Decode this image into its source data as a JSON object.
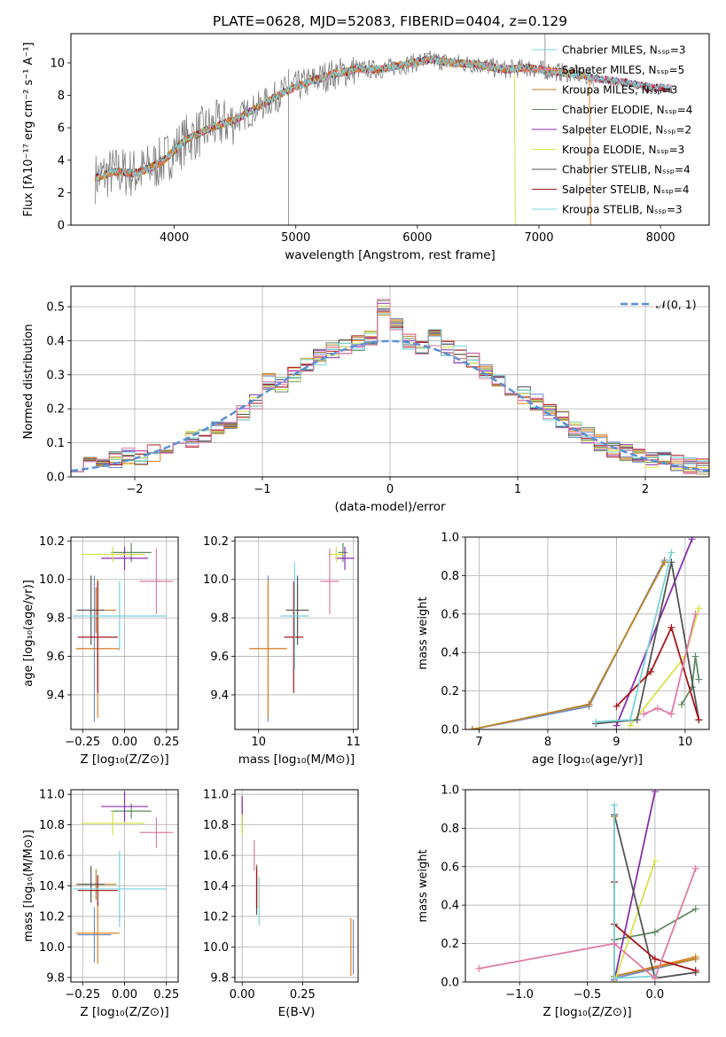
{
  "colors": [
    "#6f8fd0",
    "#e1801f",
    "#b9862e",
    "#5f8c62",
    "#8a2fae",
    "#d6e34c",
    "#555555",
    "#a6161a",
    "#7bd3d9",
    "#e07ba6"
  ],
  "chart_data": [
    {
      "id": "spectrum",
      "type": "line",
      "title": "PLATE=0628, MJD=52083, FIBERID=0404, z=0.129",
      "xlabel": "wavelength [Angstrom, rest frame]",
      "ylabel": "Flux [fλ10⁻¹⁷ erg cm⁻² s⁻¹ A⁻¹]",
      "xlim": [
        3150,
        8400
      ],
      "ylim": [
        0,
        11.8
      ],
      "xticks": [
        4000,
        5000,
        6000,
        7000,
        8000
      ],
      "yticks": [
        0,
        2,
        4,
        6,
        8,
        10
      ],
      "grid": false,
      "legend_position": "top-right",
      "legend": [
        "Chabrier MILES, Nₛₛₚ=3",
        "Salpeter MILES, Nₛₛₚ=5",
        "Kroupa MILES, Nₛₛₚ=3",
        "Chabrier ELODIE, Nₛₛₚ=4",
        "Salpeter ELODIE, Nₛₛₚ=2",
        "Kroupa ELODIE, Nₛₛₚ=3",
        "Chabrier STELIB, Nₛₛₚ=4",
        "Salpeter STELIB, Nₛₛₚ=4",
        "Kroupa STELIB, Nₛₛₚ=3"
      ],
      "continuum": {
        "x": [
          3350,
          3500,
          3700,
          3900,
          4100,
          4300,
          4500,
          4700,
          4900,
          5100,
          5300,
          5500,
          5700,
          5900,
          6100,
          6300,
          6500,
          6700,
          6900,
          7100,
          7300,
          7500,
          7700,
          7900,
          8100
        ],
        "y": [
          2.9,
          3.3,
          3.2,
          3.9,
          5.3,
          6.0,
          6.5,
          7.3,
          8.2,
          8.8,
          9.3,
          9.6,
          9.6,
          9.9,
          10.2,
          10.0,
          9.9,
          9.6,
          9.7,
          9.5,
          9.3,
          9.0,
          8.8,
          8.5,
          8.4
        ]
      }
    },
    {
      "id": "residuals",
      "type": "line",
      "xlabel": "(data-model)/error",
      "ylabel": "Normed distribution",
      "xlim": [
        -2.5,
        2.5
      ],
      "ylim": [
        0,
        0.56
      ],
      "xticks": [
        -2,
        -1,
        0,
        1,
        2
      ],
      "yticks": [
        0.0,
        0.1,
        0.2,
        0.3,
        0.4,
        0.5
      ],
      "grid": true,
      "legend_position": "top-right",
      "legend": [
        "𝒩(0, 1)"
      ],
      "gaussian": {
        "mean": 0,
        "sigma": 1
      },
      "hist_centers": [
        -2.45,
        -2.35,
        -2.25,
        -2.15,
        -2.05,
        -1.95,
        -1.85,
        -1.75,
        -1.65,
        -1.55,
        -1.45,
        -1.35,
        -1.25,
        -1.15,
        -1.05,
        -0.95,
        -0.85,
        -0.75,
        -0.65,
        -0.55,
        -0.45,
        -0.35,
        -0.25,
        -0.15,
        -0.05,
        0.05,
        0.15,
        0.25,
        0.35,
        0.45,
        0.55,
        0.65,
        0.75,
        0.85,
        0.95,
        1.05,
        1.15,
        1.25,
        1.35,
        1.45,
        1.55,
        1.65,
        1.75,
        1.85,
        1.95,
        2.05,
        2.15,
        2.25,
        2.35,
        2.45
      ],
      "hist_values": [
        0.04,
        0.06,
        0.04,
        0.05,
        0.06,
        0.06,
        0.07,
        0.08,
        0.1,
        0.11,
        0.12,
        0.14,
        0.16,
        0.19,
        0.22,
        0.28,
        0.27,
        0.3,
        0.33,
        0.35,
        0.37,
        0.38,
        0.39,
        0.41,
        0.5,
        0.45,
        0.4,
        0.38,
        0.41,
        0.38,
        0.36,
        0.34,
        0.31,
        0.29,
        0.26,
        0.24,
        0.22,
        0.19,
        0.17,
        0.14,
        0.12,
        0.1,
        0.08,
        0.07,
        0.06,
        0.05,
        0.05,
        0.04,
        0.03,
        0.03
      ]
    },
    {
      "id": "z-age",
      "type": "scatter",
      "xlabel": "Z [log₁₀(Z/Z⊙)]",
      "ylabel": "age  [log₁₀(age/yr)]",
      "xlim": [
        -0.32,
        0.32
      ],
      "ylim": [
        9.22,
        10.22
      ],
      "xticks": [
        -0.25,
        0.0,
        0.25
      ],
      "xticklabels": [
        "−0.25",
        "0.00",
        "0.25"
      ],
      "yticks": [
        9.4,
        9.6,
        9.8,
        10.0,
        10.2
      ],
      "grid": true,
      "points": [
        {
          "x": -0.18,
          "y": 9.64,
          "xerr": 0.1,
          "yerr": 0.38
        },
        {
          "x": -0.16,
          "y": 9.64,
          "xerr": 0.13,
          "yerr": 0.36
        },
        {
          "x": -0.17,
          "y": 9.84,
          "xerr": 0.12,
          "yerr": 0.12
        },
        {
          "x": 0.04,
          "y": 10.14,
          "xerr": 0.12,
          "yerr": 0.05
        },
        {
          "x": 0.0,
          "y": 10.11,
          "xerr": 0.14,
          "yerr": 0.06
        },
        {
          "x": -0.07,
          "y": 10.13,
          "xerr": 0.19,
          "yerr": 0.04
        },
        {
          "x": -0.2,
          "y": 9.84,
          "xerr": 0.08,
          "yerr": 0.18
        },
        {
          "x": -0.16,
          "y": 9.7,
          "xerr": 0.12,
          "yerr": 0.29
        },
        {
          "x": -0.03,
          "y": 9.81,
          "xerr": 0.28,
          "yerr": 0.18
        },
        {
          "x": 0.19,
          "y": 9.99,
          "xerr": 0.1,
          "yerr": 0.17
        }
      ]
    },
    {
      "id": "mass-age",
      "type": "scatter",
      "xlabel": "mass [log₁₀(M/M⊙)]",
      "xlim": [
        9.75,
        11.05
      ],
      "ylim": [
        9.22,
        10.22
      ],
      "xticks": [
        10,
        11
      ],
      "yticks": [
        9.4,
        9.6,
        9.8,
        10.0,
        10.2
      ],
      "grid": true,
      "points": [
        {
          "x": 10.1,
          "y": 9.64,
          "xerr": 0.18,
          "yerr": 0.38
        },
        {
          "x": 10.1,
          "y": 9.64,
          "xerr": 0.2,
          "yerr": 0.36
        },
        {
          "x": 10.41,
          "y": 9.84,
          "xerr": 0.12,
          "yerr": 0.12
        },
        {
          "x": 10.89,
          "y": 10.14,
          "xerr": 0.05,
          "yerr": 0.05
        },
        {
          "x": 10.91,
          "y": 10.11,
          "xerr": 0.1,
          "yerr": 0.06
        },
        {
          "x": 10.82,
          "y": 10.13,
          "xerr": 0.08,
          "yerr": 0.04
        },
        {
          "x": 10.41,
          "y": 9.84,
          "xerr": 0.12,
          "yerr": 0.18
        },
        {
          "x": 10.37,
          "y": 9.7,
          "xerr": 0.1,
          "yerr": 0.29
        },
        {
          "x": 10.38,
          "y": 9.81,
          "xerr": 0.15,
          "yerr": 0.28
        },
        {
          "x": 10.75,
          "y": 9.99,
          "xerr": 0.1,
          "yerr": 0.17
        }
      ]
    },
    {
      "id": "age-weight",
      "type": "line",
      "xlabel": "age  [log₁₀(age/yr)]",
      "ylabel": "mass weight",
      "xlim": [
        6.8,
        10.35
      ],
      "ylim": [
        0,
        1
      ],
      "xticks": [
        7,
        8,
        9,
        10
      ],
      "yticks": [
        0.0,
        0.2,
        0.4,
        0.6,
        0.8,
        1.0
      ],
      "grid": true,
      "series": [
        {
          "x": [
            6.9,
            8.6,
            9.7
          ],
          "y": [
            0.0,
            0.12,
            0.88
          ]
        },
        {
          "x": [
            6.9,
            8.6,
            9.7
          ],
          "y": [
            0.0,
            0.13,
            0.87
          ]
        },
        {
          "x": [
            6.9,
            8.6,
            9.7
          ],
          "y": [
            0.0,
            0.13,
            0.87
          ]
        },
        {
          "x": [
            9.95,
            10.1,
            10.15,
            10.2
          ],
          "y": [
            0.13,
            0.22,
            0.38,
            0.26
          ]
        },
        {
          "x": [
            9.0,
            10.1
          ],
          "y": [
            0.02,
            0.99
          ]
        },
        {
          "x": [
            9.2,
            10.0,
            10.2
          ],
          "y": [
            0.02,
            0.38,
            0.63
          ]
        },
        {
          "x": [
            8.7,
            9.3,
            9.8,
            10.2
          ],
          "y": [
            0.03,
            0.05,
            0.87,
            0.05
          ]
        },
        {
          "x": [
            9.0,
            9.5,
            9.8,
            10.2
          ],
          "y": [
            0.12,
            0.3,
            0.53,
            0.05
          ]
        },
        {
          "x": [
            8.7,
            9.2,
            9.8
          ],
          "y": [
            0.04,
            0.05,
            0.92
          ]
        },
        {
          "x": [
            9.4,
            9.6,
            9.8,
            10.15
          ],
          "y": [
            0.08,
            0.11,
            0.08,
            0.6
          ]
        }
      ]
    },
    {
      "id": "z-mass",
      "type": "scatter",
      "xlabel": "Z [log₁₀(Z/Z⊙)]",
      "ylabel": "mass [log₁₀(M/M⊙)]",
      "xlim": [
        -0.32,
        0.32
      ],
      "ylim": [
        9.77,
        11.03
      ],
      "xticks": [
        -0.25,
        0.0,
        0.25
      ],
      "xticklabels": [
        "−0.25",
        "0.00",
        "0.25"
      ],
      "yticks": [
        9.8,
        10.0,
        10.2,
        10.4,
        10.6,
        10.8,
        11.0
      ],
      "grid": true,
      "points": [
        {
          "x": -0.18,
          "y": 10.08,
          "xerr": 0.1,
          "yerr": 0.18
        },
        {
          "x": -0.16,
          "y": 10.09,
          "xerr": 0.13,
          "yerr": 0.2
        },
        {
          "x": -0.17,
          "y": 10.41,
          "xerr": 0.12,
          "yerr": 0.1
        },
        {
          "x": 0.04,
          "y": 10.89,
          "xerr": 0.12,
          "yerr": 0.05
        },
        {
          "x": 0.0,
          "y": 10.92,
          "xerr": 0.14,
          "yerr": 0.1
        },
        {
          "x": -0.07,
          "y": 10.81,
          "xerr": 0.19,
          "yerr": 0.08
        },
        {
          "x": -0.2,
          "y": 10.41,
          "xerr": 0.08,
          "yerr": 0.12
        },
        {
          "x": -0.16,
          "y": 10.37,
          "xerr": 0.12,
          "yerr": 0.1
        },
        {
          "x": -0.03,
          "y": 10.38,
          "xerr": 0.28,
          "yerr": 0.25
        },
        {
          "x": 0.19,
          "y": 10.75,
          "xerr": 0.1,
          "yerr": 0.1
        }
      ]
    },
    {
      "id": "ebv-mass",
      "type": "scatter",
      "xlabel": "E(B-V)",
      "xlim": [
        -0.03,
        0.48
      ],
      "ylim": [
        9.77,
        11.03
      ],
      "xticks": [
        0.0,
        0.25
      ],
      "xticklabels": [
        "0.00",
        "0.25"
      ],
      "yticks": [
        9.8,
        10.0,
        10.2,
        10.4,
        10.6,
        10.8,
        11.0
      ],
      "grid": true,
      "points": [
        {
          "x": 0.46,
          "y": 10.0,
          "xerr": 0,
          "yerr": 0.18
        },
        {
          "x": 0.45,
          "y": 10.0,
          "xerr": 0,
          "yerr": 0.19
        },
        {
          "x": 0.06,
          "y": 10.4,
          "xerr": 0,
          "yerr": 0.14
        },
        {
          "x": 0.0,
          "y": 10.85,
          "xerr": 0,
          "yerr": 0.1
        },
        {
          "x": 0.0,
          "y": 10.89,
          "xerr": 0,
          "yerr": 0.1
        },
        {
          "x": 0.0,
          "y": 10.8,
          "xerr": 0,
          "yerr": 0.07
        },
        {
          "x": 0.06,
          "y": 10.37,
          "xerr": 0,
          "yerr": 0.16
        },
        {
          "x": 0.06,
          "y": 10.38,
          "xerr": 0,
          "yerr": 0.13
        },
        {
          "x": 0.07,
          "y": 10.3,
          "xerr": 0,
          "yerr": 0.16
        },
        {
          "x": 0.05,
          "y": 10.6,
          "xerr": 0,
          "yerr": 0.1
        }
      ]
    },
    {
      "id": "z-weight",
      "type": "line",
      "xlabel": "Z [log₁₀(Z/Z⊙)]",
      "ylabel": "mass weight",
      "xlim": [
        -1.4,
        0.4
      ],
      "ylim": [
        0,
        1
      ],
      "xticks": [
        -1.0,
        -0.5,
        0.0
      ],
      "xticklabels": [
        "−1.0",
        "−0.5",
        "0.0"
      ],
      "yticks": [
        0.0,
        0.2,
        0.4,
        0.6,
        0.8,
        1.0
      ],
      "grid": true,
      "series": [
        {
          "x": [
            -0.3,
            -0.3,
            0.3
          ],
          "y": [
            0.87,
            0.02,
            0.12
          ]
        },
        {
          "x": [
            -0.3,
            -0.3,
            0.3
          ],
          "y": [
            0.86,
            0.03,
            0.13
          ]
        },
        {
          "x": [
            -0.3,
            -0.3,
            0.3
          ],
          "y": [
            0.86,
            0.03,
            0.12
          ]
        },
        {
          "x": [
            -0.3,
            0.0,
            0.3
          ],
          "y": [
            0.22,
            0.26,
            0.38
          ]
        },
        {
          "x": [
            -0.3,
            0.0
          ],
          "y": [
            0.01,
            0.99
          ]
        },
        {
          "x": [
            -0.3,
            0.0
          ],
          "y": [
            0.0,
            0.63
          ]
        },
        {
          "x": [
            -0.3,
            0.0,
            0.3
          ],
          "y": [
            0.87,
            0.02,
            0.05
          ]
        },
        {
          "x": [
            -0.3,
            -0.3,
            0.0,
            0.3
          ],
          "y": [
            0.52,
            0.3,
            0.12,
            0.06
          ]
        },
        {
          "x": [
            -0.3,
            -0.3,
            0.0
          ],
          "y": [
            0.92,
            0.02,
            0.03
          ]
        },
        {
          "x": [
            -1.3,
            -0.3,
            0.0,
            0.3
          ],
          "y": [
            0.07,
            0.2,
            0.02,
            0.59
          ]
        }
      ]
    }
  ]
}
